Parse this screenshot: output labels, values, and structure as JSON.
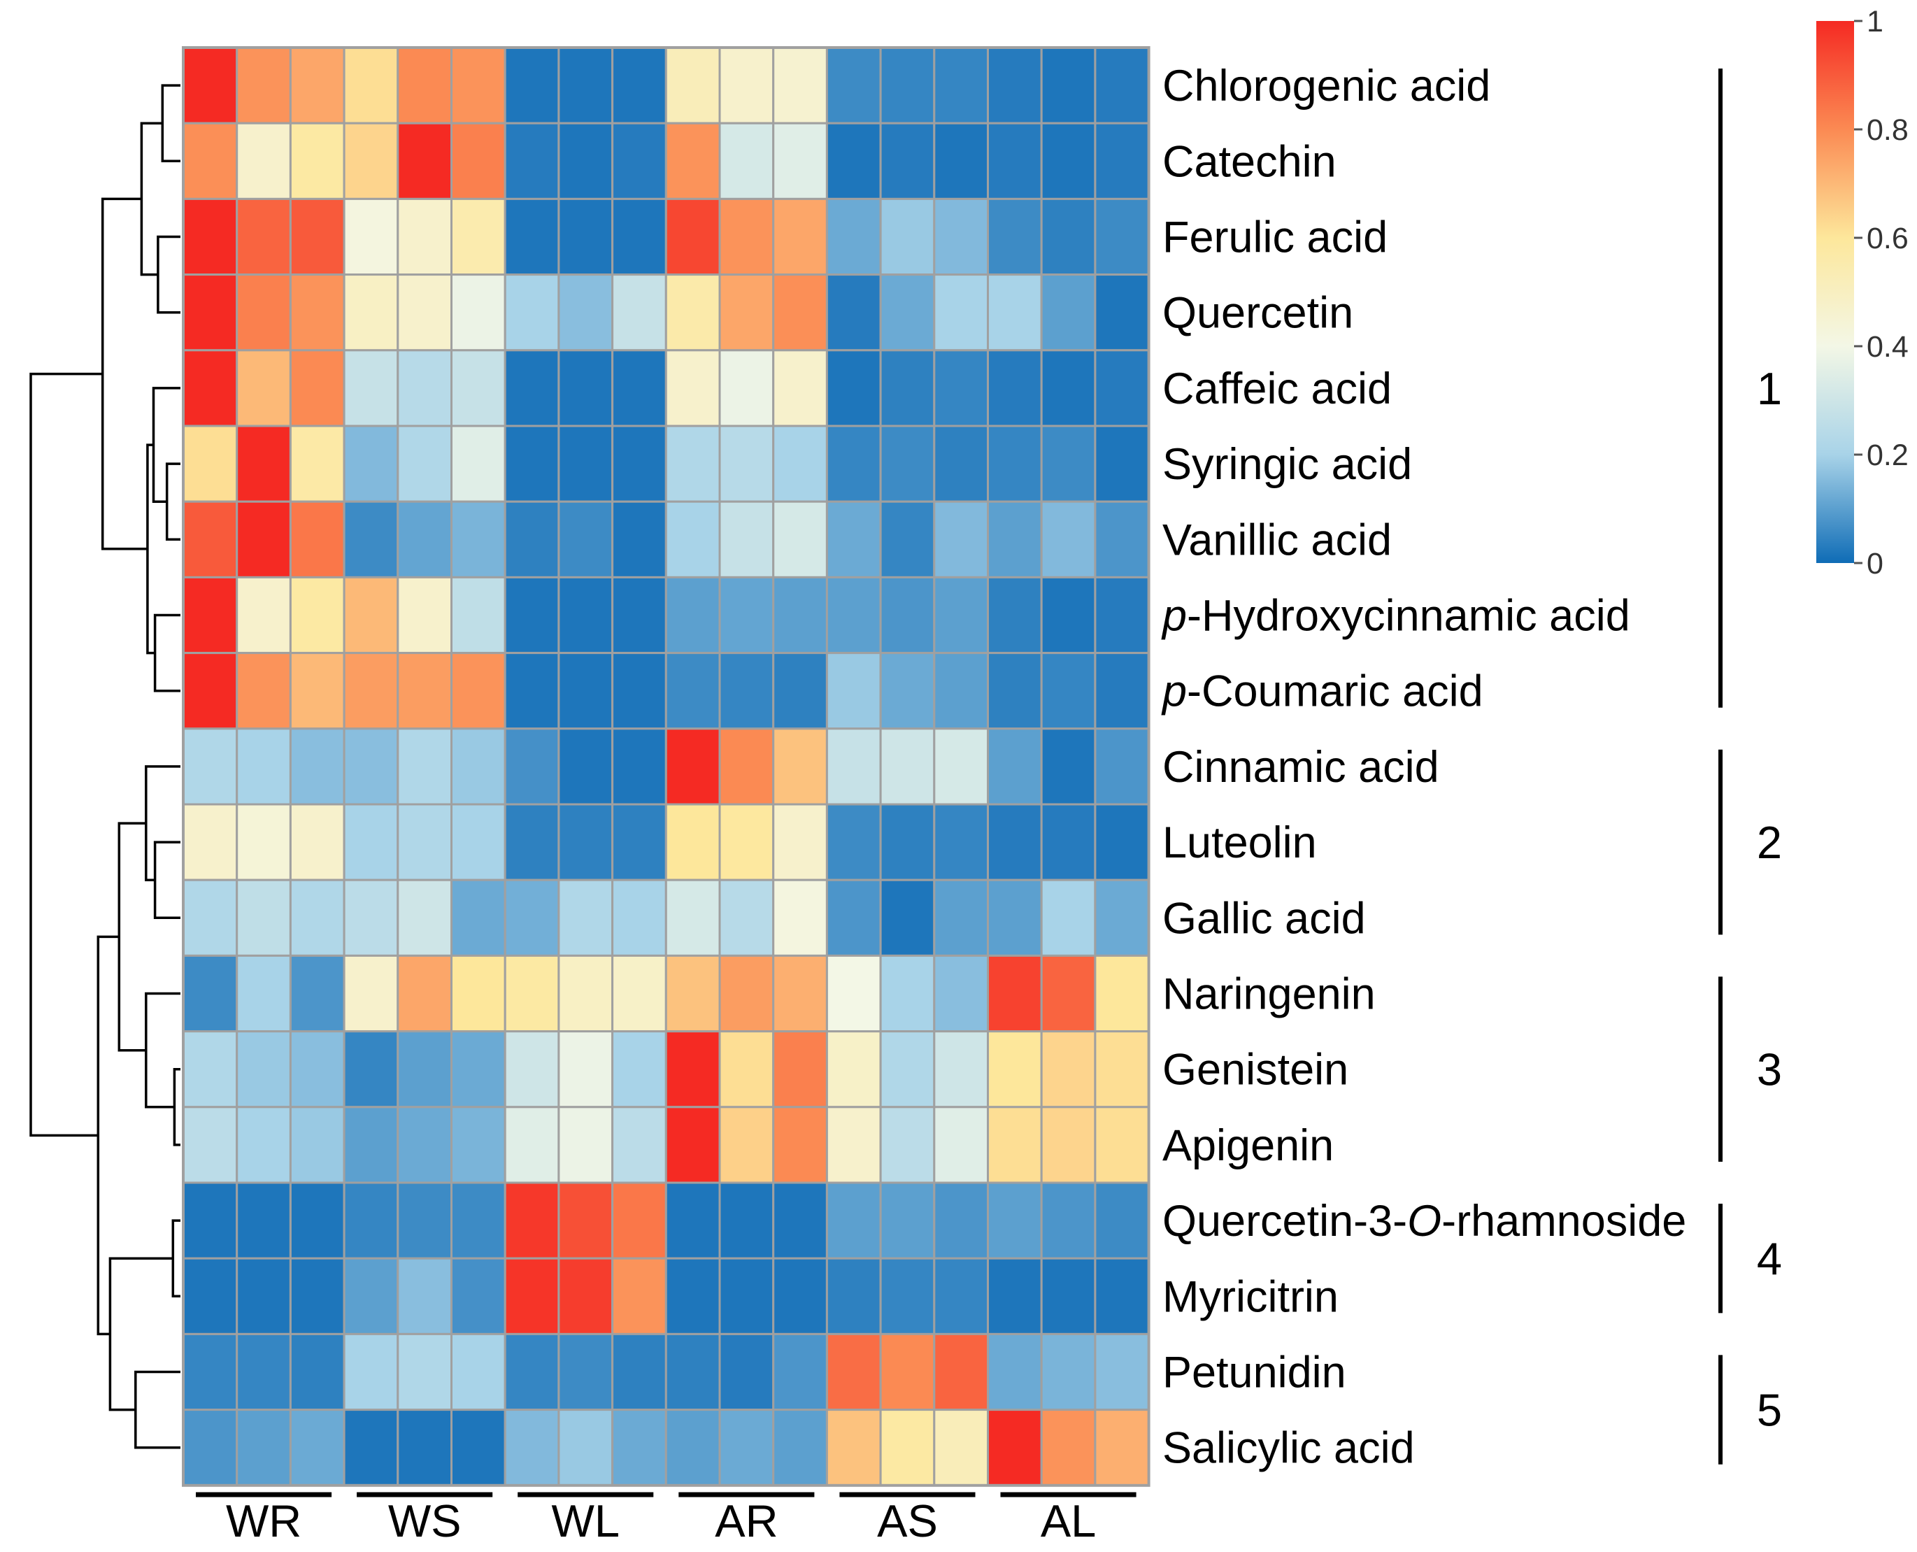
{
  "chart_data": {
    "type": "heatmap",
    "title": "",
    "rows": [
      {
        "label": "Chlorogenic acid",
        "label_prefix": "",
        "label_italic": "",
        "label_suffix": "",
        "cluster": 1
      },
      {
        "label": "Catechin",
        "label_prefix": "",
        "label_italic": "",
        "label_suffix": "",
        "cluster": 1
      },
      {
        "label": "Ferulic acid",
        "label_prefix": "",
        "label_italic": "",
        "label_suffix": "",
        "cluster": 1
      },
      {
        "label": "Quercetin",
        "label_prefix": "",
        "label_italic": "",
        "label_suffix": "",
        "cluster": 1
      },
      {
        "label": "Caffeic acid",
        "label_prefix": "",
        "label_italic": "",
        "label_suffix": "",
        "cluster": 1
      },
      {
        "label": "Syringic acid",
        "label_prefix": "",
        "label_italic": "",
        "label_suffix": "",
        "cluster": 1
      },
      {
        "label": "Vanillic acid",
        "label_prefix": "",
        "label_italic": "",
        "label_suffix": "",
        "cluster": 1
      },
      {
        "label": "p-Hydroxycinnamic acid",
        "label_prefix": "",
        "label_italic": "p",
        "label_suffix": "-Hydroxycinnamic acid",
        "cluster": 1
      },
      {
        "label": "p-Coumaric acid",
        "label_prefix": "",
        "label_italic": "p",
        "label_suffix": "-Coumaric acid",
        "cluster": 1
      },
      {
        "label": "Cinnamic acid",
        "label_prefix": "",
        "label_italic": "",
        "label_suffix": "",
        "cluster": 2
      },
      {
        "label": "Luteolin",
        "label_prefix": "",
        "label_italic": "",
        "label_suffix": "",
        "cluster": 2
      },
      {
        "label": "Gallic acid",
        "label_prefix": "",
        "label_italic": "",
        "label_suffix": "",
        "cluster": 2
      },
      {
        "label": "Naringenin",
        "label_prefix": "",
        "label_italic": "",
        "label_suffix": "",
        "cluster": 3
      },
      {
        "label": "Genistein",
        "label_prefix": "",
        "label_italic": "",
        "label_suffix": "",
        "cluster": 3
      },
      {
        "label": "Apigenin",
        "label_prefix": "",
        "label_italic": "",
        "label_suffix": "",
        "cluster": 3
      },
      {
        "label": "Quercetin-3-O-rhamnoside",
        "label_prefix": "Quercetin-3-",
        "label_italic": "O",
        "label_suffix": "-rhamnoside",
        "cluster": 4
      },
      {
        "label": "Myricitrin",
        "label_prefix": "",
        "label_italic": "",
        "label_suffix": "",
        "cluster": 4
      },
      {
        "label": "Petunidin",
        "label_prefix": "",
        "label_italic": "",
        "label_suffix": "",
        "cluster": 5
      },
      {
        "label": "Salicylic acid",
        "label_prefix": "",
        "label_italic": "",
        "label_suffix": "",
        "cluster": 5
      }
    ],
    "groups": [
      {
        "label": "WR",
        "n_replicates": 3
      },
      {
        "label": "WS",
        "n_replicates": 3
      },
      {
        "label": "WL",
        "n_replicates": 3
      },
      {
        "label": "AR",
        "n_replicates": 3
      },
      {
        "label": "AS",
        "n_replicates": 3
      },
      {
        "label": "AL",
        "n_replicates": 3
      }
    ],
    "values": [
      [
        1.0,
        0.78,
        0.74,
        0.62,
        0.8,
        0.78,
        0.02,
        0.02,
        0.02,
        0.52,
        0.47,
        0.46,
        0.06,
        0.05,
        0.05,
        0.03,
        0.02,
        0.03
      ],
      [
        0.79,
        0.47,
        0.58,
        0.64,
        1.0,
        0.82,
        0.03,
        0.02,
        0.03,
        0.78,
        0.32,
        0.35,
        0.02,
        0.03,
        0.02,
        0.03,
        0.02,
        0.03
      ],
      [
        1.0,
        0.88,
        0.9,
        0.42,
        0.47,
        0.55,
        0.02,
        0.02,
        0.02,
        0.94,
        0.78,
        0.74,
        0.12,
        0.18,
        0.15,
        0.06,
        0.04,
        0.06
      ],
      [
        1.0,
        0.82,
        0.78,
        0.49,
        0.47,
        0.38,
        0.2,
        0.16,
        0.28,
        0.56,
        0.74,
        0.79,
        0.03,
        0.12,
        0.2,
        0.2,
        0.1,
        0.02
      ],
      [
        1.0,
        0.7,
        0.8,
        0.28,
        0.24,
        0.28,
        0.02,
        0.02,
        0.02,
        0.47,
        0.38,
        0.47,
        0.02,
        0.04,
        0.05,
        0.03,
        0.02,
        0.03
      ],
      [
        0.62,
        1.0,
        0.57,
        0.15,
        0.22,
        0.35,
        0.02,
        0.02,
        0.02,
        0.22,
        0.24,
        0.2,
        0.05,
        0.06,
        0.04,
        0.05,
        0.06,
        0.02
      ],
      [
        0.9,
        1.0,
        0.84,
        0.06,
        0.11,
        0.14,
        0.04,
        0.06,
        0.02,
        0.2,
        0.28,
        0.32,
        0.12,
        0.05,
        0.15,
        0.1,
        0.15,
        0.08
      ],
      [
        1.0,
        0.47,
        0.58,
        0.7,
        0.47,
        0.26,
        0.02,
        0.02,
        0.02,
        0.1,
        0.11,
        0.1,
        0.1,
        0.08,
        0.1,
        0.04,
        0.02,
        0.03
      ],
      [
        1.0,
        0.78,
        0.7,
        0.76,
        0.76,
        0.78,
        0.02,
        0.02,
        0.02,
        0.06,
        0.05,
        0.04,
        0.18,
        0.12,
        0.1,
        0.04,
        0.05,
        0.03
      ],
      [
        0.22,
        0.2,
        0.16,
        0.16,
        0.22,
        0.18,
        0.07,
        0.02,
        0.02,
        1.0,
        0.8,
        0.68,
        0.28,
        0.3,
        0.32,
        0.1,
        0.02,
        0.08
      ],
      [
        0.47,
        0.44,
        0.47,
        0.2,
        0.22,
        0.2,
        0.04,
        0.04,
        0.04,
        0.6,
        0.59,
        0.47,
        0.06,
        0.04,
        0.05,
        0.03,
        0.03,
        0.02
      ],
      [
        0.22,
        0.26,
        0.22,
        0.25,
        0.3,
        0.12,
        0.13,
        0.22,
        0.2,
        0.32,
        0.24,
        0.42,
        0.08,
        0.02,
        0.1,
        0.1,
        0.2,
        0.12
      ],
      [
        0.06,
        0.2,
        0.08,
        0.47,
        0.74,
        0.6,
        0.58,
        0.49,
        0.48,
        0.68,
        0.76,
        0.72,
        0.4,
        0.2,
        0.16,
        0.95,
        0.88,
        0.6
      ],
      [
        0.22,
        0.18,
        0.16,
        0.05,
        0.1,
        0.12,
        0.3,
        0.38,
        0.2,
        1.0,
        0.62,
        0.82,
        0.48,
        0.22,
        0.3,
        0.6,
        0.64,
        0.62
      ],
      [
        0.25,
        0.2,
        0.18,
        0.1,
        0.12,
        0.14,
        0.35,
        0.38,
        0.25,
        1.0,
        0.65,
        0.8,
        0.47,
        0.25,
        0.35,
        0.62,
        0.64,
        0.62
      ],
      [
        0.02,
        0.02,
        0.02,
        0.05,
        0.06,
        0.06,
        0.97,
        0.92,
        0.84,
        0.02,
        0.02,
        0.02,
        0.1,
        0.1,
        0.08,
        0.1,
        0.08,
        0.06
      ],
      [
        0.02,
        0.02,
        0.02,
        0.1,
        0.16,
        0.07,
        0.98,
        0.96,
        0.78,
        0.02,
        0.02,
        0.02,
        0.04,
        0.05,
        0.05,
        0.02,
        0.02,
        0.02
      ],
      [
        0.05,
        0.05,
        0.04,
        0.2,
        0.22,
        0.2,
        0.05,
        0.06,
        0.04,
        0.04,
        0.03,
        0.08,
        0.86,
        0.8,
        0.88,
        0.12,
        0.14,
        0.16
      ],
      [
        0.08,
        0.1,
        0.12,
        0.02,
        0.02,
        0.02,
        0.15,
        0.18,
        0.12,
        0.1,
        0.12,
        0.1,
        0.68,
        0.58,
        0.52,
        1.0,
        0.78,
        0.72
      ]
    ],
    "clusters": [
      {
        "label": "1",
        "rows": [
          0,
          8
        ]
      },
      {
        "label": "2",
        "rows": [
          9,
          11
        ]
      },
      {
        "label": "3",
        "rows": [
          12,
          14
        ]
      },
      {
        "label": "4",
        "rows": [
          15,
          16
        ]
      },
      {
        "label": "5",
        "rows": [
          17,
          18
        ]
      }
    ],
    "dendrogram": {
      "note": "hierarchical clustering of rows; leaves are row indices, heights are relative merge distances (0-1)",
      "merges": [
        {
          "left": "r0",
          "right": "r1",
          "height": 0.12
        },
        {
          "left": "r2",
          "right": "r3",
          "height": 0.15
        },
        {
          "left": "m0",
          "right": "m1",
          "height": 0.26
        },
        {
          "left": "r5",
          "right": "r6",
          "height": 0.09
        },
        {
          "left": "r4",
          "right": "m3",
          "height": 0.18
        },
        {
          "left": "r7",
          "right": "r8",
          "height": 0.17
        },
        {
          "left": "m4",
          "right": "m5",
          "height": 0.22
        },
        {
          "left": "m2",
          "right": "m6",
          "height": 0.52
        },
        {
          "left": "r10",
          "right": "r11",
          "height": 0.17
        },
        {
          "left": "r9",
          "right": "m8",
          "height": 0.23
        },
        {
          "left": "r13",
          "right": "r14",
          "height": 0.04
        },
        {
          "left": "r12",
          "right": "m10",
          "height": 0.23
        },
        {
          "left": "m9",
          "right": "m11",
          "height": 0.41
        },
        {
          "left": "r15",
          "right": "r16",
          "height": 0.05
        },
        {
          "left": "r17",
          "right": "r18",
          "height": 0.3
        },
        {
          "left": "m13",
          "right": "m14",
          "height": 0.47
        },
        {
          "left": "m12",
          "right": "m15",
          "height": 0.55
        },
        {
          "left": "m7",
          "right": "m16",
          "height": 1.0
        }
      ]
    },
    "color_scale": {
      "min": 0,
      "max": 1,
      "stops": [
        {
          "value": 0.0,
          "color": "#0f6cb6"
        },
        {
          "value": 0.2,
          "color": "#a8d3e8"
        },
        {
          "value": 0.4,
          "color": "#f3f7e6"
        },
        {
          "value": 0.6,
          "color": "#fde79b"
        },
        {
          "value": 0.8,
          "color": "#fb8a53"
        },
        {
          "value": 1.0,
          "color": "#f52a23"
        }
      ],
      "ticks": [
        "0",
        "0.2",
        "0.4",
        "0.6",
        "0.8",
        "1"
      ]
    },
    "grid_color": "#a0a0a0"
  }
}
